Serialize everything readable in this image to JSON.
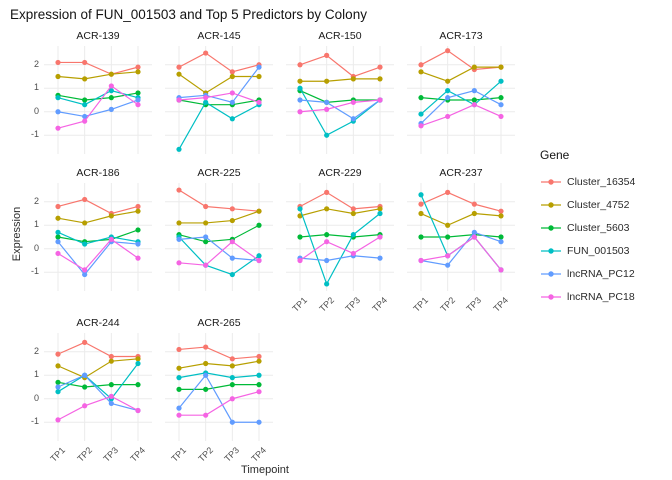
{
  "chart_data": {
    "type": "line",
    "title": "Expression of FUN_001503 and Top 5 Predictors by Colony",
    "xlabel": "Timepoint",
    "ylabel": "Expression",
    "legend_title": "Gene",
    "x_categories": [
      "TP1",
      "TP2",
      "TP3",
      "TP4"
    ],
    "y_ticks": [
      -1,
      0,
      1,
      2
    ],
    "y_range": [
      -1.8,
      2.8
    ],
    "grid": true,
    "legend_position": "right",
    "series_names": [
      "Cluster_16354",
      "Cluster_4752",
      "Cluster_5603",
      "FUN_001503",
      "lncRNA_PC12",
      "lncRNA_PC18"
    ],
    "series_colors": [
      "#F8766D",
      "#B79F00",
      "#00BA38",
      "#00BFC4",
      "#619CFF",
      "#F564E3"
    ],
    "facets": [
      {
        "name": "ACR-139",
        "values": [
          [
            2.1,
            2.1,
            1.6,
            1.9
          ],
          [
            1.5,
            1.4,
            1.6,
            1.7
          ],
          [
            0.7,
            0.5,
            0.6,
            0.8
          ],
          [
            0.6,
            0.3,
            0.9,
            0.6
          ],
          [
            0.0,
            -0.2,
            0.1,
            0.5
          ],
          [
            -0.7,
            -0.4,
            1.1,
            0.3
          ]
        ]
      },
      {
        "name": "ACR-145",
        "values": [
          [
            1.9,
            2.5,
            1.7,
            2.0
          ],
          [
            1.6,
            0.8,
            1.5,
            1.5
          ],
          [
            0.5,
            0.3,
            0.3,
            0.5
          ],
          [
            -1.6,
            0.4,
            -0.3,
            0.3
          ],
          [
            0.6,
            0.7,
            0.4,
            1.9
          ],
          [
            0.5,
            0.6,
            0.8,
            0.4
          ]
        ]
      },
      {
        "name": "ACR-150",
        "values": [
          [
            2.0,
            2.4,
            1.5,
            1.9
          ],
          [
            1.3,
            1.3,
            1.4,
            1.4
          ],
          [
            0.9,
            0.4,
            0.5,
            0.5
          ],
          [
            1.0,
            -1.0,
            -0.4,
            0.5
          ],
          [
            0.5,
            0.4,
            -0.3,
            0.5
          ],
          [
            0.0,
            0.1,
            0.4,
            0.5
          ]
        ]
      },
      {
        "name": "ACR-173",
        "values": [
          [
            2.0,
            2.6,
            1.8,
            1.9
          ],
          [
            1.7,
            1.3,
            1.9,
            1.9
          ],
          [
            0.6,
            0.5,
            0.5,
            0.6
          ],
          [
            -0.1,
            0.9,
            0.3,
            1.3
          ],
          [
            -0.5,
            0.6,
            0.9,
            0.3
          ],
          [
            -0.6,
            -0.2,
            0.3,
            -0.2
          ]
        ]
      },
      {
        "name": "ACR-186",
        "values": [
          [
            1.8,
            2.1,
            1.5,
            1.8
          ],
          [
            1.3,
            1.1,
            1.4,
            1.6
          ],
          [
            0.5,
            0.3,
            0.4,
            0.8
          ],
          [
            0.7,
            0.2,
            0.5,
            0.3
          ],
          [
            0.3,
            -1.1,
            0.3,
            0.2
          ],
          [
            -0.2,
            -0.9,
            0.4,
            -0.4
          ]
        ]
      },
      {
        "name": "ACR-225",
        "values": [
          [
            2.5,
            1.8,
            1.7,
            1.6
          ],
          [
            1.1,
            1.1,
            1.2,
            1.6
          ],
          [
            0.6,
            0.3,
            0.4,
            1.0
          ],
          [
            0.5,
            -0.7,
            -1.1,
            -0.3
          ],
          [
            0.4,
            0.5,
            -0.4,
            -0.5
          ],
          [
            -0.6,
            -0.7,
            0.3,
            -0.5
          ]
        ]
      },
      {
        "name": "ACR-229",
        "values": [
          [
            1.8,
            2.4,
            1.7,
            1.8
          ],
          [
            1.4,
            1.7,
            1.5,
            1.7
          ],
          [
            0.5,
            0.6,
            0.5,
            0.6
          ],
          [
            1.7,
            -1.5,
            0.6,
            1.5
          ],
          [
            -0.4,
            -0.5,
            -0.3,
            -0.4
          ],
          [
            -0.5,
            0.3,
            -0.2,
            0.5
          ]
        ]
      },
      {
        "name": "ACR-237",
        "values": [
          [
            1.9,
            2.4,
            1.9,
            1.6
          ],
          [
            1.5,
            1.0,
            1.5,
            1.4
          ],
          [
            0.5,
            0.5,
            0.6,
            0.5
          ],
          [
            2.3,
            -0.3,
            0.5,
            -0.9
          ],
          [
            -0.5,
            -0.7,
            0.7,
            0.3
          ],
          [
            -0.5,
            -0.3,
            0.5,
            -0.9
          ]
        ]
      },
      {
        "name": "ACR-244",
        "values": [
          [
            1.9,
            2.4,
            1.8,
            1.8
          ],
          [
            1.4,
            0.9,
            1.6,
            1.7
          ],
          [
            0.7,
            0.5,
            0.6,
            0.6
          ],
          [
            0.3,
            1.0,
            0.0,
            1.5
          ],
          [
            0.5,
            1.0,
            -0.2,
            -0.5
          ],
          [
            -0.9,
            -0.3,
            0.1,
            -0.5
          ]
        ]
      },
      {
        "name": "ACR-265",
        "values": [
          [
            2.1,
            2.2,
            1.7,
            1.8
          ],
          [
            1.3,
            1.5,
            1.4,
            1.6
          ],
          [
            0.4,
            0.4,
            0.6,
            0.6
          ],
          [
            0.9,
            1.1,
            0.9,
            1.0
          ],
          [
            -0.4,
            1.0,
            -1.0,
            -1.0
          ],
          [
            -0.7,
            -0.7,
            0.0,
            0.3
          ]
        ]
      }
    ]
  }
}
